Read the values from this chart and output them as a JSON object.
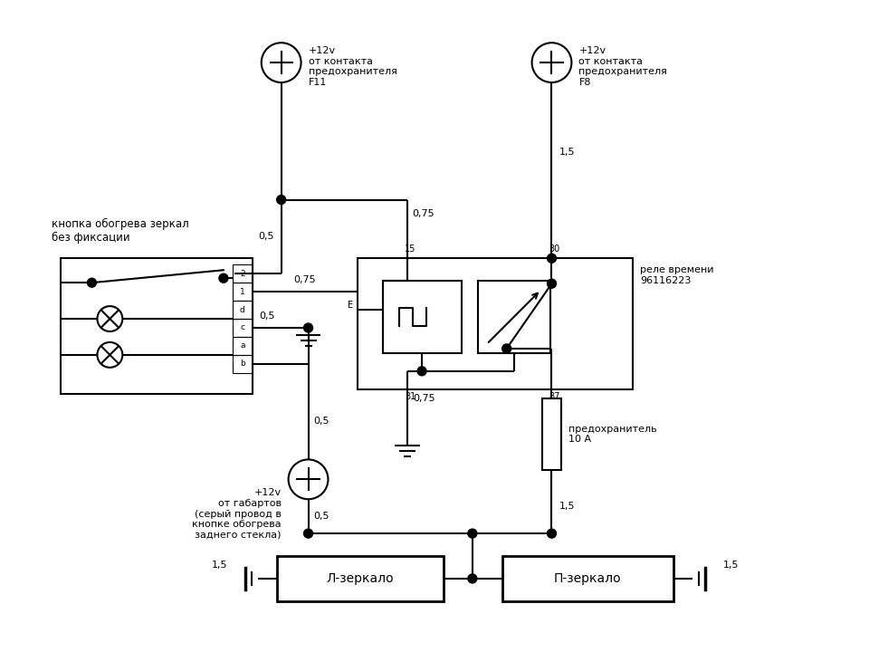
{
  "bg_color": "#ffffff",
  "line_color": "#000000",
  "lw": 1.5,
  "texts": {
    "knopka_label": "кнопка обогрева зеркал\nбез фиксации",
    "power1_label": "+12v\nот контакта\nпредохранителя\nF11",
    "power2_label": "+12v\nот контакта\nпредохранителя\nF8",
    "power3_label": "+12v\nот габартов\n(серый провод в\nкнопке обогрева\nзаднего стекла)",
    "rele_label": "реле времени\n96116223",
    "pred_label": "предохранитель\n10 А",
    "l_mirror": "Л-зеркало",
    "p_mirror": "П-зеркало"
  }
}
